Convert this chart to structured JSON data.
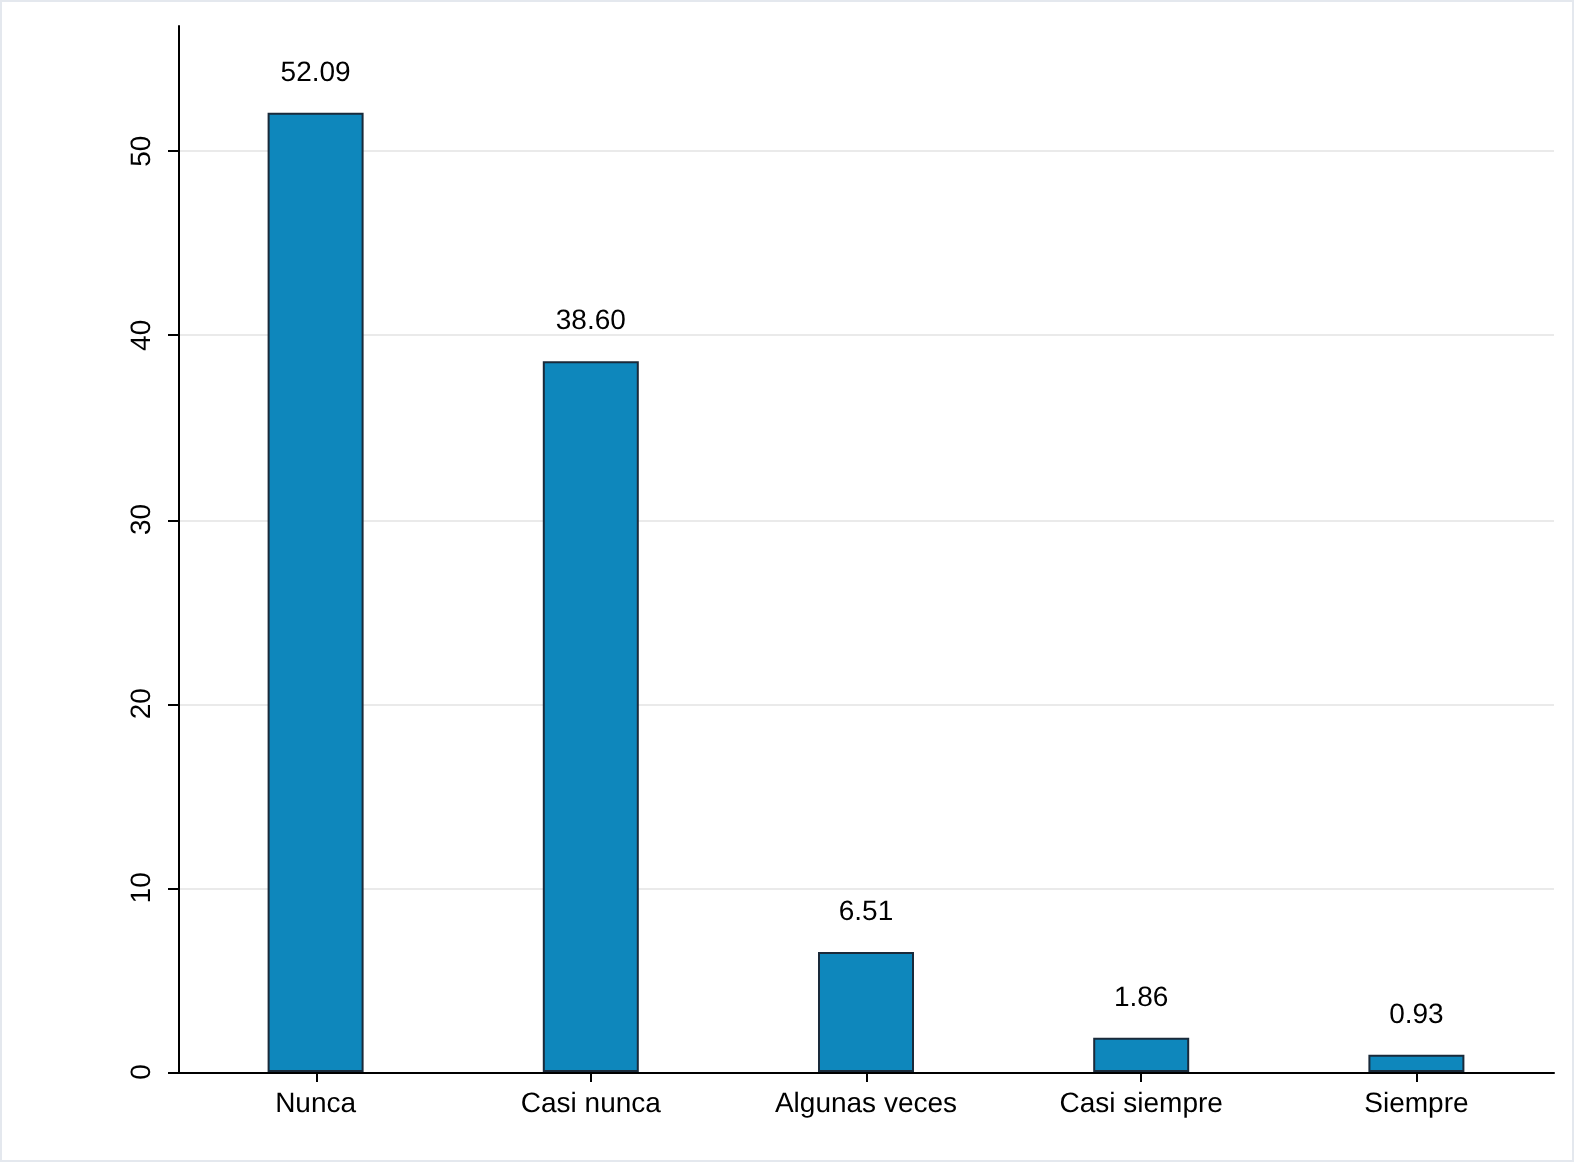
{
  "chart_data": {
    "type": "bar",
    "categories": [
      "Nunca",
      "Casi nunca",
      "Algunas veces",
      "Casi siempre",
      "Siempre"
    ],
    "values": [
      52.09,
      38.6,
      6.51,
      1.86,
      0.93
    ],
    "value_labels": [
      "52.09",
      "38.60",
      "6.51",
      "1.86",
      "0.93"
    ],
    "color": "#0e87bc",
    "ylim": [
      0,
      56.8
    ],
    "yticks": [
      0,
      10,
      20,
      30,
      40,
      50
    ],
    "grid": "y"
  }
}
